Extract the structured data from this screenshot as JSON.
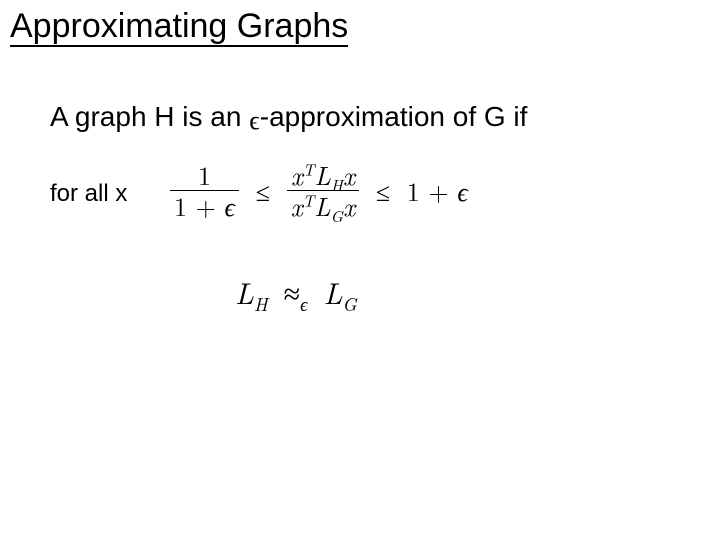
{
  "colors": {
    "text": "#000000",
    "background": "#ffffff",
    "rule": "#000000"
  },
  "fonts": {
    "ui_family": "Arial, Helvetica, sans-serif",
    "math_family": "Latin Modern Roman, CMU Serif, Times New Roman, Times, serif",
    "title_size_pt": 34,
    "body1_size_pt": 28,
    "body2_size_pt": 24,
    "math_size_pt": 26
  },
  "title": "Approximating Graphs",
  "line1_parts": {
    "a": "A graph H  is an ",
    "b": "-approximation of G if"
  },
  "line2": "for all x",
  "formula1": {
    "left_frac": {
      "num": "1",
      "den_prefix": "1 + ",
      "den_eps": "ϵ"
    },
    "le1": "≤",
    "mid_frac": {
      "num_parts": {
        "x": "x",
        "T": "T",
        "L": "L",
        "H": "H",
        "x2": "x"
      },
      "den_parts": {
        "x": "x",
        "T": "T",
        "L": "L",
        "G": "G",
        "x2": "x"
      }
    },
    "le2": "≤",
    "right": {
      "one_plus": "1 + ",
      "eps": "ϵ"
    }
  },
  "formula2": {
    "LH": {
      "L": "L",
      "H": "H"
    },
    "approx": "≈",
    "eps_sub": "ϵ",
    "LG": {
      "L": "L",
      "G": "G"
    }
  },
  "epsilon_inline_glyph": "ϵ"
}
